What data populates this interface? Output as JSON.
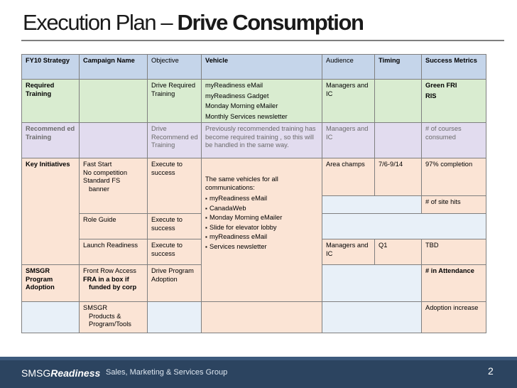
{
  "title": {
    "normal": "Execution Plan – ",
    "bold": "Drive Consumption"
  },
  "headers": [
    "FY10 Strategy",
    "Campaign Name",
    "Objective",
    "Vehicle",
    "Audience",
    "Timing",
    "Success Metrics"
  ],
  "required_training": {
    "strategy": "Required Training",
    "objective": "Drive Required Training",
    "vehicles": [
      "myReadiness eMail",
      "myReadiness Gadget",
      "Monday Morning  eMailer",
      "Monthly Services newsletter"
    ],
    "audience": "Managers and IC",
    "metrics": [
      "Green FRI",
      "RIS"
    ]
  },
  "recommended_training": {
    "strategy": "Recommend ed Training",
    "objective": "Drive Recommend ed Training",
    "vehicle": "Previously recommended training has become required training , so this will be handled in the same way.",
    "audience": "Managers and IC",
    "metrics": "# of courses consumed"
  },
  "key_initiatives": {
    "strategy": "Key Initiatives",
    "rows": [
      {
        "campaign_lines": [
          "Fast Start",
          "No competition",
          "Standard FS"
        ],
        "campaign_indent": "banner",
        "objective": "Execute to success",
        "audience": "Area champs",
        "timing": "7/6-9/14",
        "metrics": "97% completion"
      },
      {
        "metrics": "# of site hits"
      },
      {
        "campaign": "Role Guide",
        "objective": "Execute to success"
      },
      {
        "campaign": "Launch Readiness",
        "objective": "Execute to success",
        "audience": "Managers and IC",
        "timing": "Q1",
        "metrics": "TBD"
      }
    ]
  },
  "shared_vehicle": {
    "intro": "The same vehicles for all communications:",
    "items": [
      "myReadiness eMail",
      "CanadaWeb",
      "Monday Morning eMailer",
      "Slide for elevator lobby",
      "myReadiness eMail",
      "Services newsletter"
    ]
  },
  "smsgr_adoption": {
    "strategy": "SMSGR Program Adoption",
    "row1": {
      "campaign_line": "Front Row Access",
      "campaign_bold": "FRA in a box if",
      "campaign_bold_indent": "funded by corp",
      "objective": "Drive Program Adoption",
      "metrics": "# in Attendance"
    },
    "row2": {
      "campaign_line": "SMSGR",
      "campaign_indent": [
        "Products &",
        "Program/Tools"
      ],
      "metrics": "Adoption increase"
    }
  },
  "footer": {
    "logo_normal": "SMSG",
    "logo_bold": "Readiness",
    "tagline": "Sales, Marketing & Services Group",
    "page": "2"
  },
  "colors": {
    "header": "#c5d5ea",
    "required": "#d9ecd0",
    "recommended": "#e2dcef",
    "initiatives": "#fbe4d5",
    "footer": "#2c4460"
  }
}
